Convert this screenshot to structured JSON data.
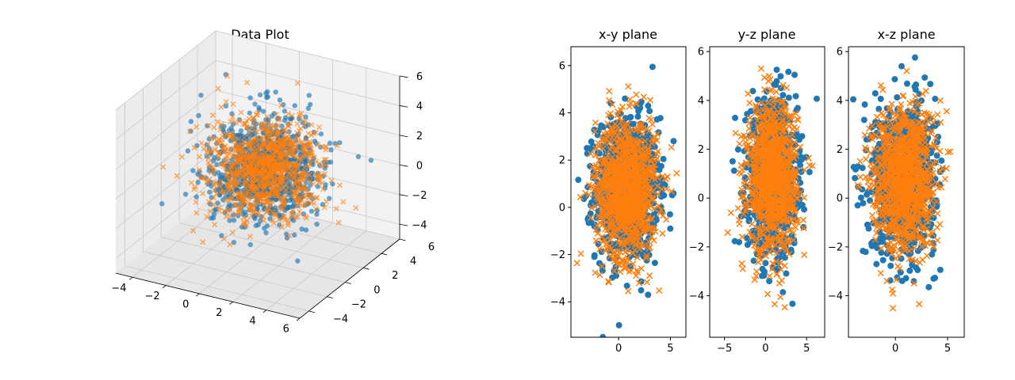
{
  "colors": {
    "series_a": "#1f77b4",
    "series_b": "#ff7f0e"
  },
  "chart_data": [
    {
      "type": "scatter",
      "subtype": "3d",
      "title": "Data Plot",
      "xlim": [
        -5,
        6
      ],
      "ylim": [
        -5,
        6
      ],
      "zlim": [
        -5,
        6
      ],
      "x_ticks": [
        "−4",
        "−2",
        "0",
        "2",
        "4",
        "6"
      ],
      "y_ticks": [
        "−4",
        "−2",
        "0",
        "2",
        "4",
        "6"
      ],
      "z_ticks": [
        "−4",
        "−2",
        "0",
        "2",
        "4",
        "6"
      ],
      "grid": true,
      "series": [
        {
          "marker": "circle",
          "color": "#1f77b4",
          "distribution": {
            "type": "gaussian",
            "n": 1000,
            "mean": [
              0.8,
              0.8,
              0.8
            ],
            "std": [
              1.5,
              1.5,
              1.5
            ]
          }
        },
        {
          "marker": "x",
          "color": "#ff7f0e",
          "distribution": {
            "type": "gaussian",
            "n": 1000,
            "mean": [
              0.8,
              0.8,
              0.8
            ],
            "std": [
              1.5,
              1.5,
              1.5
            ]
          }
        }
      ]
    },
    {
      "type": "scatter",
      "title": "x-y plane",
      "xlim": [
        -4.6,
        6.5
      ],
      "ylim": [
        -5.5,
        6.8
      ],
      "x_ticks": [
        0,
        5
      ],
      "y_ticks": [
        -4,
        -2,
        0,
        2,
        4,
        6
      ],
      "x_tick_labels": [
        "0",
        "5"
      ],
      "y_tick_labels": [
        "−4",
        "−2",
        "0",
        "2",
        "4",
        "6"
      ],
      "series": [
        {
          "marker": "circle",
          "color": "#1f77b4",
          "distribution": {
            "type": "gaussian",
            "n": 1000,
            "mean": [
              0.8,
              0.8
            ],
            "std": [
              1.5,
              1.5
            ]
          }
        },
        {
          "marker": "x",
          "color": "#ff7f0e",
          "distribution": {
            "type": "gaussian",
            "n": 1000,
            "mean": [
              0.8,
              0.8
            ],
            "std": [
              1.5,
              1.5
            ]
          }
        }
      ]
    },
    {
      "type": "scatter",
      "title": "y-z plane",
      "xlim": [
        -6.8,
        7.2
      ],
      "ylim": [
        -5.7,
        6.2
      ],
      "x_ticks": [
        -5,
        0,
        5
      ],
      "y_ticks": [
        -4,
        -2,
        0,
        2,
        4,
        6
      ],
      "x_tick_labels": [
        "−5",
        "0",
        "5"
      ],
      "y_tick_labels": [
        "−4",
        "−2",
        "0",
        "2",
        "4",
        "6"
      ],
      "series": [
        {
          "marker": "circle",
          "color": "#1f77b4",
          "distribution": {
            "type": "gaussian",
            "n": 1000,
            "mean": [
              0.8,
              0.8
            ],
            "std": [
              1.5,
              1.5
            ]
          }
        },
        {
          "marker": "x",
          "color": "#ff7f0e",
          "distribution": {
            "type": "gaussian",
            "n": 1000,
            "mean": [
              0.8,
              0.8
            ],
            "std": [
              1.5,
              1.5
            ]
          }
        }
      ]
    },
    {
      "type": "scatter",
      "title": "x-z plane",
      "xlim": [
        -4.5,
        6.6
      ],
      "ylim": [
        -5.7,
        6.2
      ],
      "x_ticks": [
        0,
        5
      ],
      "y_ticks": [
        -4,
        -2,
        0,
        2,
        4,
        6
      ],
      "x_tick_labels": [
        "0",
        "5"
      ],
      "y_tick_labels": [
        "−4",
        "−2",
        "0",
        "2",
        "4",
        "6"
      ],
      "series": [
        {
          "marker": "circle",
          "color": "#1f77b4",
          "distribution": {
            "type": "gaussian",
            "n": 1000,
            "mean": [
              0.8,
              0.8
            ],
            "std": [
              1.5,
              1.5
            ]
          }
        },
        {
          "marker": "x",
          "color": "#ff7f0e",
          "distribution": {
            "type": "gaussian",
            "n": 1000,
            "mean": [
              0.8,
              0.8
            ],
            "std": [
              1.5,
              1.5
            ]
          }
        }
      ]
    }
  ]
}
